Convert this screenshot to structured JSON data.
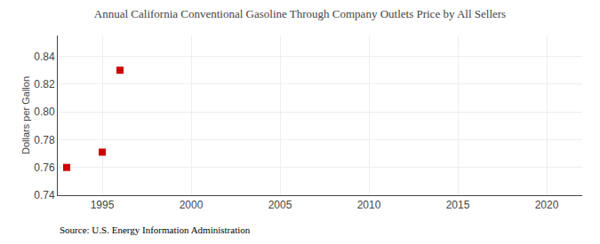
{
  "chart_data": {
    "type": "scatter",
    "title": "Annual California Conventional Gasoline Through Company Outlets Price by All Sellers",
    "ylabel": "Dollars per Gallon",
    "annotations": [
      "Source: U.S. Energy Information Administration"
    ],
    "x": [
      1993,
      1995,
      1996
    ],
    "values": [
      0.76,
      0.771,
      0.83
    ],
    "color": "#cc0000",
    "marker": "square",
    "xlim": [
      1992.5,
      2022
    ],
    "ylim": [
      0.74,
      0.855
    ],
    "xticks": [
      1995,
      2000,
      2005,
      2010,
      2015,
      2020
    ],
    "yticks": [
      0.74,
      0.76,
      0.78,
      {
        "value": 0.8,
        "label": "0.80"
      },
      0.82,
      0.84
    ],
    "grid": true
  }
}
